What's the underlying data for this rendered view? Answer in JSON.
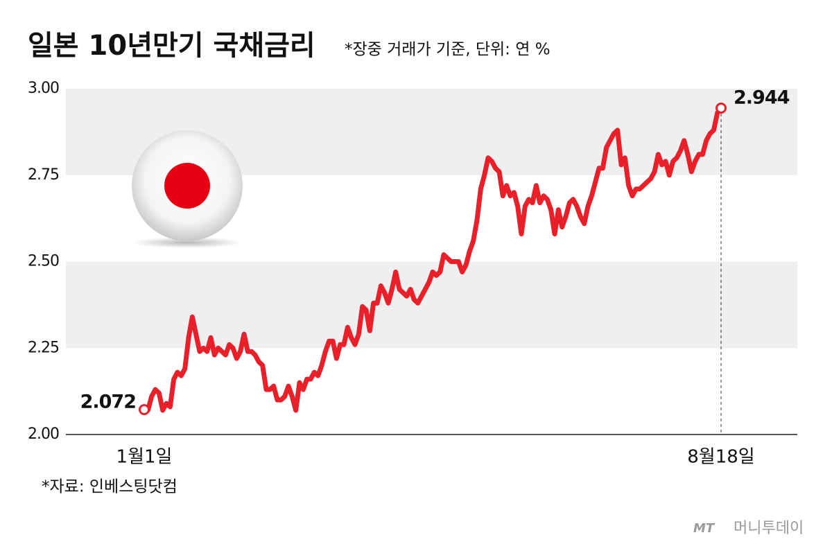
{
  "chart_data": {
    "type": "line",
    "title": "일본 10년만기 국채금리",
    "subtitle": "*장중 거래가 기준, 단위: 연 %",
    "source": "*자료: 인베스팅닷컴",
    "brand": {
      "mark": "MT",
      "name": "머니투데이"
    },
    "categories": [
      "1월1일",
      null,
      null,
      null,
      null,
      null,
      null,
      null,
      null,
      null,
      null,
      null,
      null,
      null,
      null,
      null,
      null,
      null,
      null,
      null,
      null,
      null,
      null,
      null,
      null,
      null,
      null,
      null,
      null,
      null,
      null,
      null,
      null,
      null,
      null,
      null,
      null,
      null,
      null,
      null,
      null,
      null,
      null,
      null,
      null,
      null,
      null,
      null,
      null,
      null,
      null,
      null,
      null,
      null,
      null,
      null,
      null,
      null,
      null,
      null,
      null,
      null,
      null,
      null,
      null,
      null,
      null,
      null,
      null,
      null,
      null,
      null,
      null,
      null,
      null,
      null,
      null,
      null,
      null,
      null,
      null,
      null,
      null,
      null,
      null,
      null,
      null,
      null,
      null,
      null,
      null,
      null,
      null,
      null,
      null,
      null,
      null,
      null,
      null,
      null,
      null,
      null,
      null,
      null,
      null,
      null,
      null,
      null,
      null,
      null,
      null,
      null,
      null,
      null,
      null,
      null,
      null,
      null,
      null,
      null,
      null,
      null,
      null,
      null,
      null,
      null,
      null,
      null,
      null,
      null,
      null,
      null,
      null,
      null,
      null,
      null,
      null,
      null,
      null,
      null,
      null,
      null,
      null,
      null,
      null,
      null,
      null,
      null,
      null,
      null,
      null,
      null,
      null,
      null,
      null,
      null,
      "8월18일"
    ],
    "values": [
      2.072,
      2.07,
      2.11,
      2.13,
      2.12,
      2.07,
      2.09,
      2.08,
      2.16,
      2.18,
      2.17,
      2.19,
      2.28,
      2.34,
      2.29,
      2.24,
      2.25,
      2.24,
      2.28,
      2.23,
      2.25,
      2.24,
      2.23,
      2.26,
      2.25,
      2.22,
      2.24,
      2.29,
      2.24,
      2.24,
      2.23,
      2.21,
      2.2,
      2.13,
      2.13,
      2.14,
      2.1,
      2.1,
      2.11,
      2.14,
      2.11,
      2.07,
      2.15,
      2.13,
      2.16,
      2.16,
      2.18,
      2.17,
      2.2,
      2.24,
      2.27,
      2.27,
      2.22,
      2.26,
      2.26,
      2.31,
      2.28,
      2.26,
      2.29,
      2.37,
      2.36,
      2.3,
      2.38,
      2.38,
      2.43,
      2.41,
      2.38,
      2.42,
      2.47,
      2.42,
      2.41,
      2.4,
      2.42,
      2.39,
      2.38,
      2.4,
      2.42,
      2.44,
      2.47,
      2.46,
      2.47,
      2.52,
      2.51,
      2.5,
      2.5,
      2.5,
      2.47,
      2.49,
      2.53,
      2.56,
      2.62,
      2.71,
      2.75,
      2.8,
      2.79,
      2.77,
      2.76,
      2.69,
      2.72,
      2.69,
      2.7,
      2.66,
      2.58,
      2.66,
      2.68,
      2.67,
      2.72,
      2.67,
      2.69,
      2.68,
      2.65,
      2.58,
      2.65,
      2.6,
      2.63,
      2.67,
      2.68,
      2.66,
      2.63,
      2.61,
      2.66,
      2.69,
      2.73,
      2.77,
      2.77,
      2.83,
      2.85,
      2.87,
      2.88,
      2.78,
      2.8,
      2.72,
      2.69,
      2.71,
      2.71,
      2.72,
      2.73,
      2.74,
      2.76,
      2.81,
      2.78,
      2.79,
      2.75,
      2.79,
      2.8,
      2.82,
      2.85,
      2.81,
      2.76,
      2.79,
      2.81,
      2.81,
      2.85,
      2.87,
      2.88,
      2.93,
      2.944
    ],
    "color": "#e8202a",
    "ylim": [
      2,
      3
    ],
    "yticks": [
      {
        "value": 2,
        "label": "2.00"
      },
      {
        "value": 2.25,
        "label": "2.25"
      },
      {
        "value": 2.5,
        "label": "2.50"
      },
      {
        "value": 2.75,
        "label": "2.75"
      },
      {
        "value": 3,
        "label": "3.00"
      }
    ]
  }
}
